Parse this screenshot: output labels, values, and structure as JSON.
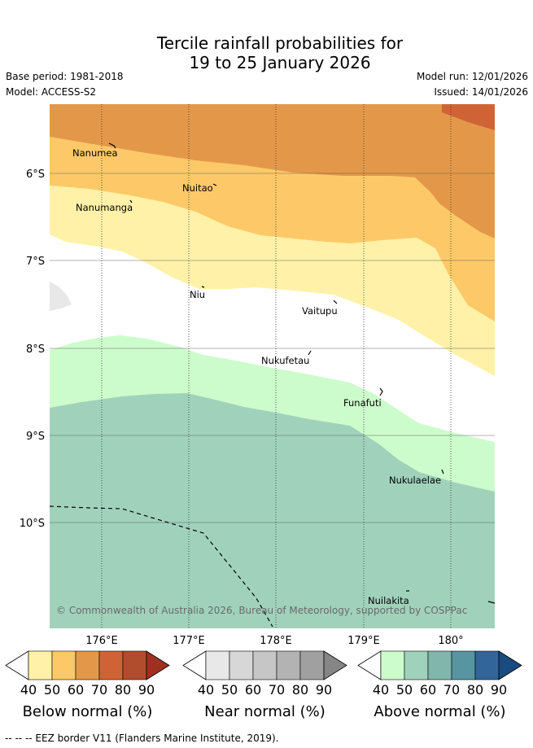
{
  "title": {
    "line1": "Tercile rainfall probabilities for",
    "line2": "19 to 25 January 2026"
  },
  "meta": {
    "base_period": "Base period: 1981-2018",
    "model": "Model: ACCESS-S2",
    "model_run": "Model run: 12/01/2026",
    "issued": "Issued: 14/01/2026"
  },
  "map": {
    "lat_labels": [
      "6°S",
      "7°S",
      "8°S",
      "9°S",
      "10°S"
    ],
    "lon_labels": [
      "176°E",
      "177°E",
      "178°E",
      "179°E",
      "180°"
    ],
    "places": [
      "Nanumea",
      "Nuitao",
      "Nanumanga",
      "Niu",
      "Vaitupu",
      "Nukufetau",
      "Funafuti",
      "Nukulaelae",
      "Nuilakita"
    ],
    "copyright": "© Commonwealth of Australia 2026, Bureau of Meteorology, supported by COSPPac",
    "eez_legend": "--  --  -- EEZ border V11 (Flanders Marine Institute, 2019)."
  },
  "legend": {
    "ticks": [
      "40",
      "50",
      "60",
      "70",
      "80",
      "90"
    ],
    "bars": [
      {
        "label": "Below normal (%)",
        "under": "#ffffff",
        "over": "#9e3022",
        "colors": [
          "#fff1a8",
          "#fdc968",
          "#e39849",
          "#cf6335",
          "#b14d2c"
        ]
      },
      {
        "label": "Near normal (%)",
        "under": "#ffffff",
        "over": "#868686",
        "colors": [
          "#e8e8e8",
          "#d7d7d7",
          "#c6c6c6",
          "#b3b3b3",
          "#a0a0a0"
        ]
      },
      {
        "label": "Above normal (%)",
        "under": "#ffffff",
        "over": "#1a4b7f",
        "colors": [
          "#cdfccc",
          "#a0d2bb",
          "#80b6ab",
          "#5795a0",
          "#32659a"
        ]
      }
    ]
  }
}
